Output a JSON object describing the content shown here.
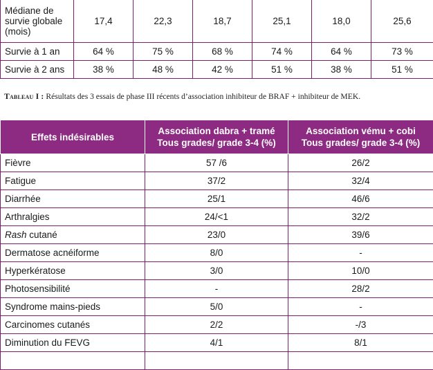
{
  "survival_table": {
    "rows": [
      {
        "label": "Médiane de survie globale (mois)",
        "values": [
          "17,4",
          "22,3",
          "18,7",
          "25,1",
          "18,0",
          "25,6"
        ]
      },
      {
        "label": "Survie à 1 an",
        "values": [
          "64 %",
          "75 %",
          "68 %",
          "74 %",
          "64 %",
          "73 %"
        ]
      },
      {
        "label": "Survie à 2 ans",
        "values": [
          "38 %",
          "48 %",
          "42 %",
          "51 %",
          "38 %",
          "51 %"
        ]
      }
    ]
  },
  "caption": {
    "label": "Tableau I :",
    "text": " Résultats des 3 essais de phase III récents d’association inhibiteur de BRAF + inhibiteur de MEK."
  },
  "ae_table": {
    "headers": [
      "Effets indésirables",
      "Association dabra + tramé",
      "Tous grades/ grade 3-4 (%)",
      "Association vému + cobi",
      "Tous grades/ grade 3-4 (%)"
    ],
    "rows": [
      {
        "effect": "Fièvre",
        "italic": "",
        "rest": "",
        "dabra": "57 /6",
        "vemu": "26/2"
      },
      {
        "effect": "Fatigue",
        "italic": "",
        "rest": "",
        "dabra": "37/2",
        "vemu": "32/4"
      },
      {
        "effect": "Diarrhée",
        "italic": "",
        "rest": "",
        "dabra": "25/1",
        "vemu": "46/6"
      },
      {
        "effect": "Arthralgies",
        "italic": "",
        "rest": "",
        "dabra": "24/<1",
        "vemu": "32/2"
      },
      {
        "effect": "",
        "italic": "Rash",
        "rest": " cutané",
        "dabra": "23/0",
        "vemu": "39/6"
      },
      {
        "effect": "Dermatose acnéiforme",
        "italic": "",
        "rest": "",
        "dabra": "8/0",
        "vemu": "-"
      },
      {
        "effect": "Hyperkératose",
        "italic": "",
        "rest": "",
        "dabra": "3/0",
        "vemu": "10/0"
      },
      {
        "effect": "Photosensibilité",
        "italic": "",
        "rest": "",
        "dabra": "-",
        "vemu": "28/2"
      },
      {
        "effect": "Syndrome mains-pieds",
        "italic": "",
        "rest": "",
        "dabra": "5/0",
        "vemu": "-"
      },
      {
        "effect": "Carcinomes cutanés",
        "italic": "",
        "rest": "",
        "dabra": "2/2",
        "vemu": "-/3"
      },
      {
        "effect": "Diminution du FEVG",
        "italic": "",
        "rest": "",
        "dabra": "4/1",
        "vemu": "8/1"
      },
      {
        "effect": "",
        "italic": "",
        "rest": "",
        "dabra": "",
        "vemu": ""
      }
    ]
  }
}
